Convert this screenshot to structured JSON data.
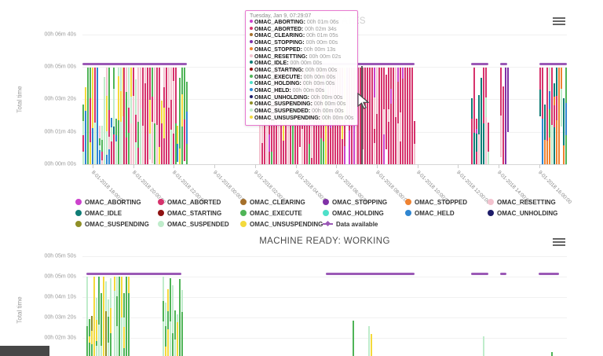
{
  "colors": {
    "OMAC_ABORTING": "#cc42cc",
    "OMAC_ABORTED": "#d6336c",
    "OMAC_CLEARING": "#a5702b",
    "OMAC_STOPPING": "#8031a7",
    "OMAC_STOPPED": "#ef8231",
    "OMAC_RESETTING": "#f3c3cf",
    "OMAC_IDLE": "#0f7d76",
    "OMAC_STARTING": "#8f1212",
    "OMAC_EXECUTE": "#4fb457",
    "OMAC_HOLDING": "#4ee0c9",
    "OMAC_HELD": "#2f86d1",
    "OMAC_UNHOLDING": "#1d1c69",
    "OMAC_SUSPENDING": "#8f8f27",
    "OMAC_SUSPENDED": "#bfeccb",
    "OMAC_UNSUSPENDING": "#f4da3c",
    "data_available": "#9b59b6"
  },
  "tooltip": {
    "title": "Tuesday, Jan 9, 07:29:07",
    "rows": [
      {
        "label": "OMAC_ABORTING",
        "value": "00h 01m 06s",
        "color": "OMAC_ABORTING"
      },
      {
        "label": "OMAC_ABORTED",
        "value": "00h 02m 34s",
        "color": "OMAC_ABORTED"
      },
      {
        "label": "OMAC_CLEARING",
        "value": "00h 01m 05s",
        "color": "OMAC_CLEARING"
      },
      {
        "label": "OMAC_STOPPING",
        "value": "00h 00m 00s",
        "color": "OMAC_STOPPING"
      },
      {
        "label": "OMAC_STOPPED",
        "value": "00h 00m 13s",
        "color": "OMAC_STOPPED"
      },
      {
        "label": "OMAC_RESETTING",
        "value": "00h 00m 02s",
        "color": "OMAC_RESETTING"
      },
      {
        "label": "OMAC_IDLE",
        "value": "00h 00m 00s",
        "color": "OMAC_IDLE"
      },
      {
        "label": "OMAC_STARTING",
        "value": "00h 00m 00s",
        "color": "OMAC_STARTING"
      },
      {
        "label": "OMAC_EXECUTE",
        "value": "00h 00m 00s",
        "color": "OMAC_EXECUTE"
      },
      {
        "label": "OMAC_HOLDING",
        "value": "00h 00m 00s",
        "color": "OMAC_HOLDING"
      },
      {
        "label": "OMAC_HELD",
        "value": "00h 00m 00s",
        "color": "OMAC_HELD"
      },
      {
        "label": "OMAC_UNHOLDING",
        "value": "00h 00m 00s",
        "color": "OMAC_UNHOLDING"
      },
      {
        "label": "OMAC_SUSPENDING",
        "value": "00h 00m 00s",
        "color": "OMAC_SUSPENDING"
      },
      {
        "label": "OMAC_SUSPENDED",
        "value": "00h 00m 00s",
        "color": "OMAC_SUSPENDED"
      },
      {
        "label": "OMAC_UNSUSPENDING",
        "value": "00h 00m 00s",
        "color": "OMAC_UNSUSPENDING"
      }
    ]
  },
  "legend": {
    "items": [
      {
        "label": "OMAC_ABORTING",
        "color": "OMAC_ABORTING",
        "marker": "circle"
      },
      {
        "label": "OMAC_ABORTED",
        "color": "OMAC_ABORTED",
        "marker": "circle"
      },
      {
        "label": "OMAC_CLEARING",
        "color": "OMAC_CLEARING",
        "marker": "circle"
      },
      {
        "label": "OMAC_STOPPING",
        "color": "OMAC_STOPPING",
        "marker": "circle"
      },
      {
        "label": "OMAC_STOPPED",
        "color": "OMAC_STOPPED",
        "marker": "circle"
      },
      {
        "label": "OMAC_RESETTING",
        "color": "OMAC_RESETTING",
        "marker": "circle"
      },
      {
        "label": "OMAC_IDLE",
        "color": "OMAC_IDLE",
        "marker": "circle"
      },
      {
        "label": "OMAC_STARTING",
        "color": "OMAC_STARTING",
        "marker": "circle"
      },
      {
        "label": "OMAC_EXECUTE",
        "color": "OMAC_EXECUTE",
        "marker": "circle"
      },
      {
        "label": "OMAC_HOLDING",
        "color": "OMAC_HOLDING",
        "marker": "circle"
      },
      {
        "label": "OMAC_HELD",
        "color": "OMAC_HELD",
        "marker": "circle"
      },
      {
        "label": "OMAC_UNHOLDING",
        "color": "OMAC_UNHOLDING",
        "marker": "circle"
      },
      {
        "label": "OMAC_SUSPENDING",
        "color": "OMAC_SUSPENDING",
        "marker": "circle"
      },
      {
        "label": "OMAC_SUSPENDED",
        "color": "OMAC_SUSPENDED",
        "marker": "circle"
      },
      {
        "label": "OMAC_UNSUSPENDING",
        "color": "OMAC_UNSUSPENDING",
        "marker": "circle"
      },
      {
        "label": "Data available",
        "color": "data_available",
        "marker": "line"
      }
    ]
  },
  "chart_data": [
    {
      "type": "bar",
      "title": "MACHINE STATES",
      "ylabel": "Total time",
      "yticks": [
        "00h 06m 40s",
        "00h 05m 00s",
        "00h 03m 20s",
        "00h 01m 40s",
        "00h 00m 00s"
      ],
      "xticks": [
        "8-01-2018 18:00:00",
        "8-01-2018 20:00:00",
        "8-01-2018 22:00:00",
        "9-01-2018 00:00:00",
        "9-01-2018 02:00:00",
        "9-01-2018 04:00:00",
        "9-01-2018 06:00:00",
        "9-01-2018 08:00:00",
        "9-01-2018 10:00:00",
        "9-01-2018 12:00:00",
        "9-01-2018 14:00:00",
        "9-01-2018 16:00:00"
      ],
      "full_bar_value": "00h 05m 00s",
      "grid": true,
      "legend_position": "bottom",
      "hovered_point": {
        "time": "Tuesday, Jan 9, 07:29:07",
        "OMAC_ABORTING": "00h 01m 06s",
        "OMAC_ABORTED": "00h 02m 34s",
        "OMAC_CLEARING": "00h 01m 05s",
        "OMAC_STOPPING": "00h 00m 00s",
        "OMAC_STOPPED": "00h 00m 13s",
        "OMAC_RESETTING": "00h 00m 02s",
        "OMAC_IDLE": "00h 00m 00s",
        "OMAC_STARTING": "00h 00m 00s",
        "OMAC_EXECUTE": "00h 00m 00s",
        "OMAC_HOLDING": "00h 00m 00s",
        "OMAC_HELD": "00h 00m 00s",
        "OMAC_UNHOLDING": "00h 00m 00s",
        "OMAC_SUSPENDING": "00h 00m 00s",
        "OMAC_SUSPENDED": "00h 00m 00s",
        "OMAC_UNSUSPENDING": "00h 00m 00s"
      },
      "crosshair_x": 0.575,
      "data_available_segments": [
        [
          0.0,
          0.216
        ],
        [
          0.365,
          0.686
        ],
        [
          0.802,
          0.838
        ],
        [
          0.862,
          0.877
        ],
        [
          0.943,
          1.0
        ]
      ],
      "clusters": [
        {
          "time_range": "8-01 17:30 - 19:30",
          "x0": 0.0,
          "x1": 0.084,
          "heights": "varied-tall",
          "palette": {
            "OMAC_EXECUTE": 3,
            "OMAC_SUSPENDED": 3,
            "OMAC_UNSUSPENDING": 3,
            "OMAC_HELD": 2,
            "OMAC_IDLE": 1,
            "OMAC_ABORTED": 2,
            "OMAC_RESETTING": 1
          }
        },
        {
          "time_range": "8-01 19:30 - 22:10",
          "x0": 0.084,
          "x1": 0.194,
          "heights": "full",
          "palette": {
            "OMAC_ABORTED": 8,
            "OMAC_RESETTING": 2,
            "OMAC_EXECUTE": 1,
            "OMAC_SUSPENDED": 1,
            "OMAC_UNSUSPENDING": 1
          }
        },
        {
          "time_range": "8-01 22:10 - 22:40",
          "x0": 0.194,
          "x1": 0.216,
          "heights": "varied-tall",
          "palette": {
            "OMAC_EXECUTE": 3,
            "OMAC_SUSPENDED": 2,
            "OMAC_UNSUSPENDING": 2,
            "OMAC_HELD": 1,
            "OMAC_ABORTED": 1
          }
        },
        {
          "time_range": "9-01 02:10 - 07:00",
          "x0": 0.365,
          "x1": 0.567,
          "heights": "full",
          "palette": {
            "OMAC_ABORTED": 8,
            "OMAC_RESETTING": 1.5,
            "OMAC_ABORTING": 0.7,
            "OMAC_UNSUSPENDING": 0.6,
            "OMAC_EXECUTE": 0.4
          }
        },
        {
          "time_range": "9-01 07:00 - 09:50",
          "x0": 0.567,
          "x1": 0.686,
          "heights": "full-tail",
          "palette": {
            "OMAC_ABORTED": 9,
            "OMAC_RESETTING": 1.5,
            "OMAC_ABORTING": 0.8
          }
        },
        {
          "time_range": "9-01 12:40 - 13:30",
          "x0": 0.802,
          "x1": 0.838,
          "heights": "mixed",
          "palette": {
            "OMAC_ABORTED": 5,
            "OMAC_RESETTING": 1.5,
            "OMAC_ABORTING": 1,
            "OMAC_IDLE": 1.5,
            "OMAC_SUSPENDED": 1
          }
        },
        {
          "time_range": "9-01 14:00 - 14:25",
          "x0": 0.862,
          "x1": 0.877,
          "heights": "full",
          "palette": {
            "OMAC_ABORTED": 4,
            "OMAC_STOPPING": 3,
            "OMAC_RESETTING": 1
          }
        },
        {
          "time_range": "9-01 16:00 - 17:20",
          "x0": 0.943,
          "x1": 1.0,
          "heights": "full",
          "palette": {
            "OMAC_STOPPED": 5,
            "OMAC_ABORTED": 2,
            "OMAC_EXECUTE": 1,
            "OMAC_IDLE": 1,
            "OMAC_HELD": 1,
            "OMAC_SUSPENDED": 1
          }
        }
      ]
    },
    {
      "type": "bar",
      "title": "MACHINE READY: WORKING",
      "ylabel": "Total time",
      "yticks": [
        "00h 05m 50s",
        "00h 05m 00s",
        "00h 04m 10s",
        "00h 03m 20s",
        "00h 02m 30s"
      ],
      "xticks": [],
      "full_bar_value": "00h 05m 00s",
      "grid": true,
      "data_available_segments": [
        [
          0.008,
          0.204
        ],
        [
          0.502,
          0.686
        ],
        [
          0.802,
          0.838
        ],
        [
          0.862,
          0.875
        ],
        [
          0.941,
          0.984
        ]
      ],
      "clusters": [
        {
          "x0": 0.008,
          "x1": 0.058,
          "heights": "varied",
          "palette": {
            "OMAC_EXECUTE": 4,
            "OMAC_SUSPENDED": 3,
            "OMAC_UNSUSPENDING": 2,
            "OMAC_SUSPENDING": 0.5
          }
        },
        {
          "x0": 0.065,
          "x1": 0.099,
          "heights": "full",
          "palette": {
            "OMAC_EXECUTE": 5,
            "OMAC_SUSPENDED": 2,
            "OMAC_UNSUSPENDING": 2
          }
        },
        {
          "x0": 0.165,
          "x1": 0.205,
          "heights": "varied",
          "palette": {
            "OMAC_EXECUTE": 4,
            "OMAC_SUSPENDED": 2,
            "OMAC_UNSUSPENDING": 2
          }
        }
      ],
      "single_bars": [
        {
          "x": 0.558,
          "h": 0.45,
          "color": "OMAC_EXECUTE"
        },
        {
          "x": 0.59,
          "h": 0.38,
          "color": "OMAC_SUSPENDED"
        },
        {
          "x": 0.595,
          "h": 0.28,
          "color": "OMAC_UNSUSPENDING"
        },
        {
          "x": 0.826,
          "h": 0.25,
          "color": "OMAC_SUSPENDED"
        },
        {
          "x": 0.968,
          "h": 0.05,
          "color": "OMAC_EXECUTE"
        }
      ]
    }
  ]
}
